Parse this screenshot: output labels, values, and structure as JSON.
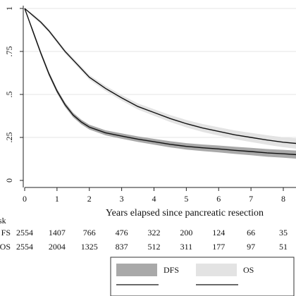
{
  "chart_data": {
    "type": "line",
    "xlabel": "Years elapsed since pancreatic resection",
    "ylabel": "",
    "xlim": [
      0,
      8.4
    ],
    "ylim": [
      0,
      1
    ],
    "x_ticks": [
      0,
      1,
      2,
      3,
      4,
      5,
      6,
      7,
      8
    ],
    "y_ticks": [
      {
        "value": 0,
        "label": "0"
      },
      {
        "value": 0.25,
        "label": ".25"
      },
      {
        "value": 0.5,
        "label": ".5"
      },
      {
        "value": 0.75,
        "label": ".75"
      },
      {
        "value": 1,
        "label": "1"
      }
    ],
    "grid": true,
    "series": [
      {
        "name": "DFS",
        "color": "#111111",
        "band_color": "#a9a9a9",
        "x": [
          0,
          0.25,
          0.5,
          0.75,
          1.0,
          1.25,
          1.5,
          1.75,
          2.0,
          2.5,
          3.0,
          3.5,
          4.0,
          4.5,
          5.0,
          5.5,
          6.0,
          6.5,
          7.0,
          7.5,
          8.0,
          8.4
        ],
        "y": [
          1.0,
          0.87,
          0.74,
          0.62,
          0.52,
          0.44,
          0.38,
          0.34,
          0.31,
          0.277,
          0.258,
          0.24,
          0.225,
          0.21,
          0.198,
          0.19,
          0.183,
          0.175,
          0.168,
          0.16,
          0.155,
          0.15
        ]
      },
      {
        "name": "OS",
        "color": "#111111",
        "band_color": "#e3e3e3",
        "x": [
          0,
          0.25,
          0.5,
          0.75,
          1.0,
          1.25,
          1.5,
          1.75,
          2.0,
          2.5,
          3.0,
          3.5,
          4.0,
          4.5,
          5.0,
          5.5,
          6.0,
          6.5,
          7.0,
          7.5,
          8.0,
          8.4
        ],
        "y": [
          1.0,
          0.96,
          0.92,
          0.87,
          0.81,
          0.75,
          0.7,
          0.65,
          0.6,
          0.535,
          0.48,
          0.43,
          0.395,
          0.36,
          0.33,
          0.305,
          0.285,
          0.265,
          0.25,
          0.235,
          0.222,
          0.215
        ]
      }
    ],
    "risk_table": {
      "header": "sk",
      "rows": [
        {
          "label": "FS",
          "values": [
            "2554",
            "1407",
            "766",
            "476",
            "322",
            "200",
            "124",
            "66",
            "35"
          ]
        },
        {
          "label": "OS",
          "values": [
            "2554",
            "2004",
            "1325",
            "837",
            "512",
            "311",
            "177",
            "97",
            "51"
          ]
        }
      ]
    },
    "legend": {
      "placement": "bottom",
      "entries": [
        {
          "name": "DFS",
          "color": "#a9a9a9"
        },
        {
          "name": "OS",
          "color": "#e3e3e3"
        }
      ]
    }
  }
}
